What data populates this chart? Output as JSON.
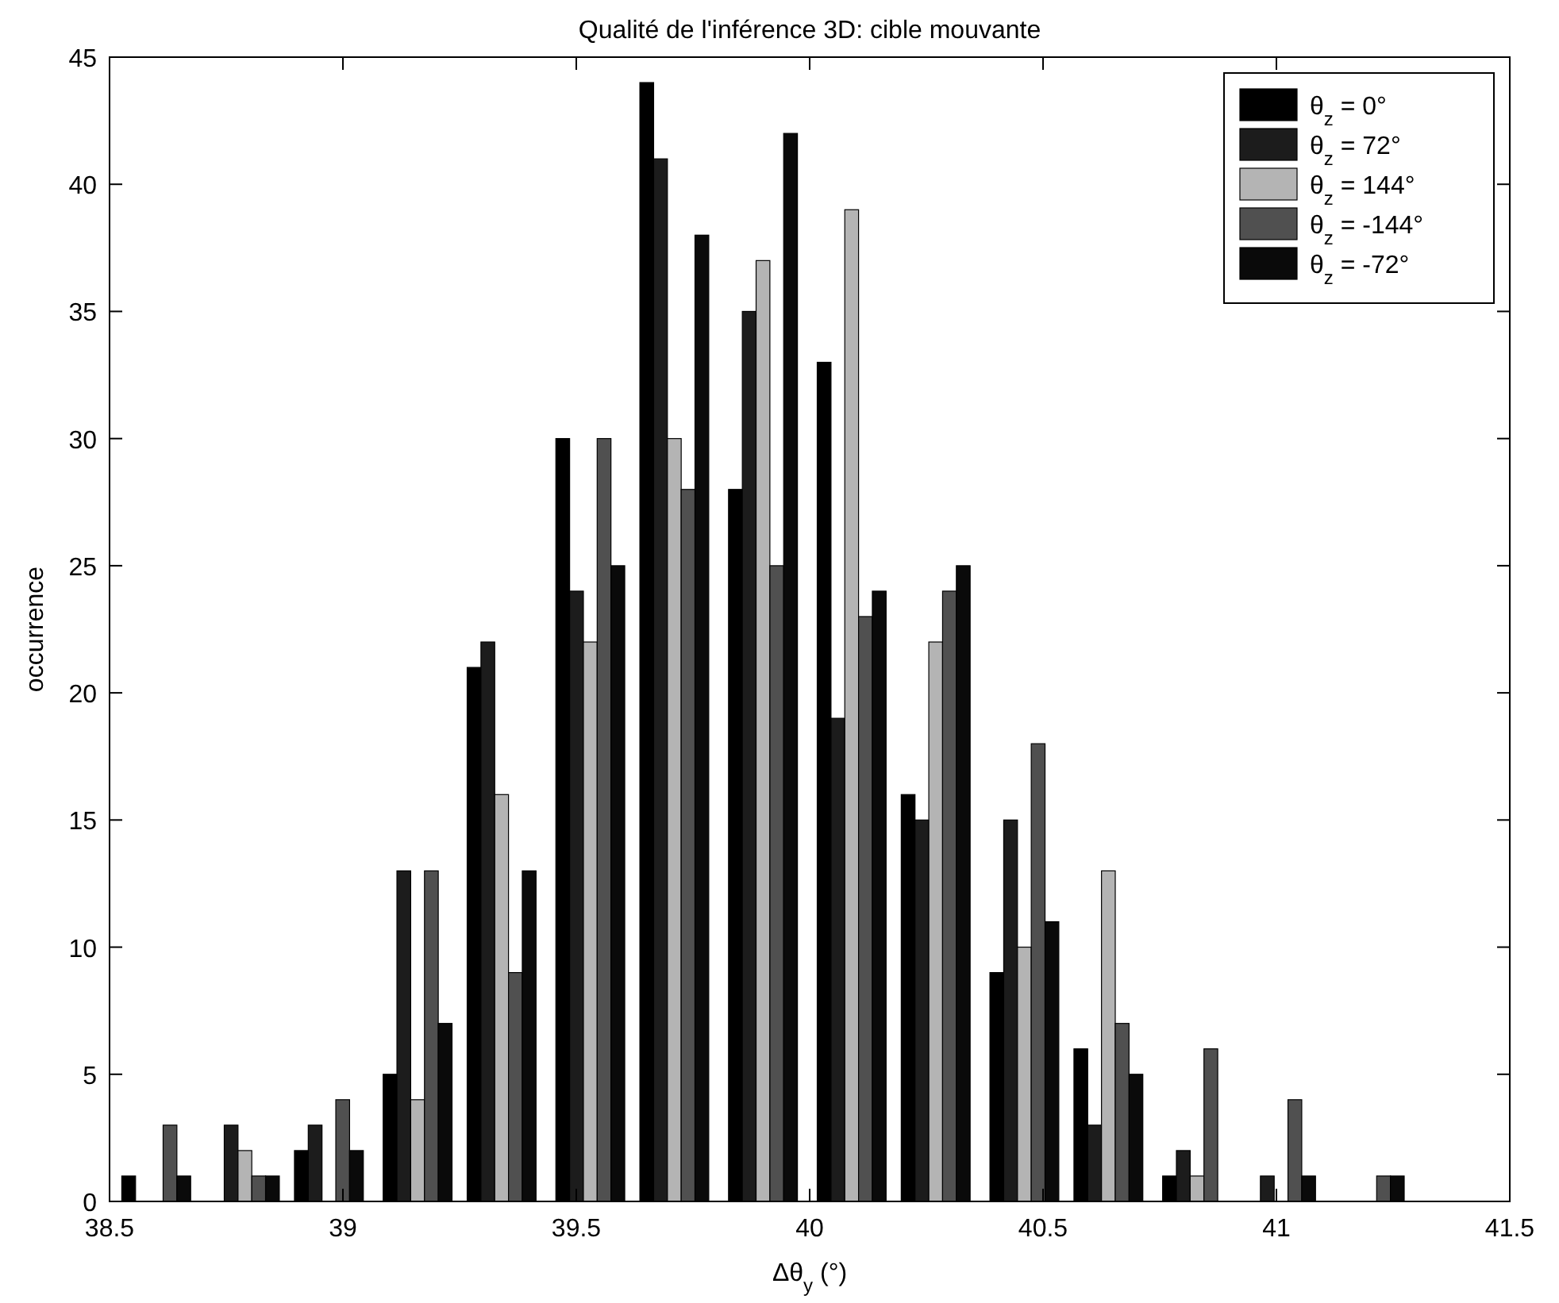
{
  "chart_data": {
    "type": "bar",
    "title": "Qualité de l'inférence 3D: cible mouvante",
    "xlabel": "Δθ$_{y}$ (°)",
    "ylabel": "occurrence",
    "x": [
      38.6,
      38.79,
      38.97,
      39.16,
      39.34,
      39.53,
      39.71,
      39.9,
      40.09,
      40.27,
      40.46,
      40.64,
      40.83,
      41.01,
      41.2
    ],
    "series": [
      {
        "name": "θ$_{z}$ = 0°",
        "color": "#000000",
        "values": [
          1,
          0,
          2,
          5,
          21,
          30,
          44,
          28,
          33,
          16,
          9,
          6,
          1,
          0,
          0
        ]
      },
      {
        "name": "θ$_{z}$ = 72°",
        "color": "#1c1c1c",
        "values": [
          0,
          3,
          3,
          13,
          22,
          24,
          41,
          35,
          19,
          15,
          15,
          3,
          2,
          1,
          0
        ]
      },
      {
        "name": "θ$_{z}$ = 144°",
        "color": "#b4b4b4",
        "values": [
          0,
          2,
          0,
          4,
          16,
          22,
          30,
          37,
          39,
          22,
          10,
          13,
          1,
          0,
          0
        ]
      },
      {
        "name": "θ$_{z}$ = -144°",
        "color": "#505050",
        "values": [
          3,
          1,
          4,
          13,
          9,
          30,
          28,
          25,
          23,
          24,
          18,
          7,
          6,
          4,
          1
        ]
      },
      {
        "name": "θ$_{z}$ = -72°",
        "color": "#0a0a0a",
        "values": [
          1,
          1,
          2,
          7,
          13,
          25,
          38,
          42,
          24,
          25,
          11,
          5,
          0,
          1,
          1
        ]
      }
    ],
    "xlim": [
      38.5,
      41.5
    ],
    "xticks": [
      38.5,
      39,
      39.5,
      40,
      40.5,
      41,
      41.5
    ],
    "ylim": [
      0,
      45
    ],
    "yticks": [
      0,
      5,
      10,
      15,
      20,
      25,
      30,
      35,
      40,
      45
    ],
    "grid": false,
    "legend": "top right"
  }
}
